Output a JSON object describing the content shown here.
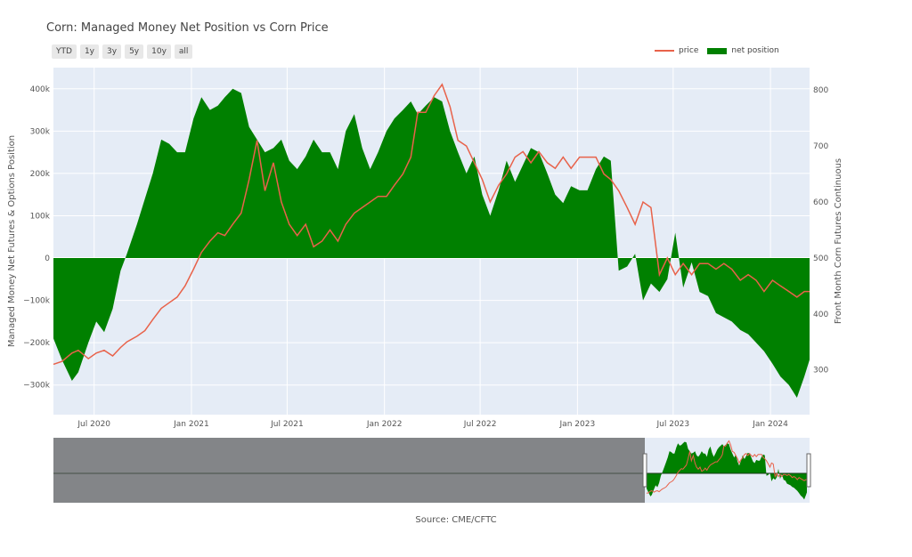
{
  "title": "Corn: Managed Money Net Position vs Corn Price",
  "range_buttons": [
    "YTD",
    "1y",
    "3y",
    "5y",
    "10y",
    "all"
  ],
  "legend": [
    {
      "label": "price",
      "color": "#e8624a",
      "kind": "line"
    },
    {
      "label": "net position",
      "color": "#008000",
      "kind": "fill"
    }
  ],
  "source": "Source: CME/CFTC",
  "chart_data": {
    "type": "area",
    "title": "Corn: Managed Money Net Position vs Corn Price",
    "ylabel": "Managed Money Net Futures & Options Position",
    "y2label": "Front Month Corn Futures Continuous",
    "ylim": [
      -370000,
      450000
    ],
    "y2lim": [
      220,
      840
    ],
    "x_ticks": [
      "Jul 2020",
      "Jan 2021",
      "Jul 2021",
      "Jan 2022",
      "Jul 2022",
      "Jan 2023",
      "Jul 2023",
      "Jan 2024"
    ],
    "y_ticks": [
      "400k",
      "300k",
      "200k",
      "100k",
      "0",
      "−100k",
      "−200k",
      "−300k"
    ],
    "y2_ticks": [
      "800",
      "700",
      "600",
      "500",
      "400",
      "300"
    ],
    "grid": true,
    "legend_position": "top-right",
    "range_slider": true,
    "series": [
      {
        "name": "net position",
        "axis": "left",
        "color": "#008000",
        "x": [
          "2020-04-15",
          "2020-05-01",
          "2020-05-20",
          "2020-06-01",
          "2020-06-20",
          "2020-07-05",
          "2020-07-20",
          "2020-08-05",
          "2020-08-20",
          "2020-09-01",
          "2020-09-20",
          "2020-10-05",
          "2020-10-20",
          "2020-11-05",
          "2020-11-20",
          "2020-12-05",
          "2020-12-20",
          "2021-01-05",
          "2021-01-20",
          "2021-02-05",
          "2021-02-20",
          "2021-03-05",
          "2021-03-20",
          "2021-04-05",
          "2021-04-20",
          "2021-05-05",
          "2021-05-20",
          "2021-06-05",
          "2021-06-20",
          "2021-07-05",
          "2021-07-20",
          "2021-08-05",
          "2021-08-20",
          "2021-09-05",
          "2021-09-20",
          "2021-10-05",
          "2021-10-20",
          "2021-11-05",
          "2021-11-20",
          "2021-12-05",
          "2021-12-20",
          "2022-01-05",
          "2022-01-20",
          "2022-02-05",
          "2022-02-20",
          "2022-03-05",
          "2022-03-20",
          "2022-04-05",
          "2022-04-20",
          "2022-05-05",
          "2022-05-20",
          "2022-06-05",
          "2022-06-20",
          "2022-07-05",
          "2022-07-20",
          "2022-08-05",
          "2022-08-20",
          "2022-09-05",
          "2022-09-20",
          "2022-10-05",
          "2022-10-20",
          "2022-11-05",
          "2022-11-20",
          "2022-12-05",
          "2022-12-20",
          "2023-01-05",
          "2023-01-20",
          "2023-02-05",
          "2023-02-20",
          "2023-03-05",
          "2023-03-20",
          "2023-04-05",
          "2023-04-20",
          "2023-05-05",
          "2023-05-20",
          "2023-06-05",
          "2023-06-20",
          "2023-07-05",
          "2023-07-20",
          "2023-08-05",
          "2023-08-20",
          "2023-09-05",
          "2023-09-20",
          "2023-10-05",
          "2023-10-20",
          "2023-11-05",
          "2023-11-20",
          "2023-12-05",
          "2023-12-20",
          "2024-01-05",
          "2024-01-20",
          "2024-02-05",
          "2024-02-20",
          "2024-03-05",
          "2024-03-15"
        ],
        "values": [
          -190000,
          -240000,
          -290000,
          -270000,
          -200000,
          -150000,
          -175000,
          -120000,
          -30000,
          10000,
          80000,
          140000,
          200000,
          280000,
          270000,
          250000,
          250000,
          330000,
          380000,
          350000,
          360000,
          380000,
          400000,
          390000,
          310000,
          280000,
          250000,
          260000,
          280000,
          230000,
          210000,
          240000,
          280000,
          250000,
          250000,
          210000,
          300000,
          340000,
          260000,
          210000,
          250000,
          300000,
          330000,
          350000,
          370000,
          340000,
          360000,
          380000,
          370000,
          300000,
          250000,
          200000,
          240000,
          150000,
          100000,
          160000,
          230000,
          180000,
          220000,
          260000,
          250000,
          200000,
          150000,
          130000,
          170000,
          160000,
          160000,
          210000,
          240000,
          230000,
          -30000,
          -20000,
          10000,
          -100000,
          -60000,
          -80000,
          -50000,
          60000,
          -70000,
          -10000,
          -80000,
          -90000,
          -130000,
          -140000,
          -150000,
          -170000,
          -180000,
          -200000,
          -220000,
          -250000,
          -280000,
          -300000,
          -330000,
          -280000,
          -240000
        ]
      },
      {
        "name": "price",
        "axis": "right",
        "color": "#e8624a",
        "x": [
          "2020-04-15",
          "2020-05-01",
          "2020-05-20",
          "2020-06-01",
          "2020-06-20",
          "2020-07-05",
          "2020-07-20",
          "2020-08-05",
          "2020-08-20",
          "2020-09-01",
          "2020-09-20",
          "2020-10-05",
          "2020-10-20",
          "2020-11-05",
          "2020-11-20",
          "2020-12-05",
          "2020-12-20",
          "2021-01-05",
          "2021-01-20",
          "2021-02-05",
          "2021-02-20",
          "2021-03-05",
          "2021-03-20",
          "2021-04-05",
          "2021-04-20",
          "2021-05-05",
          "2021-05-20",
          "2021-06-05",
          "2021-06-20",
          "2021-07-05",
          "2021-07-20",
          "2021-08-05",
          "2021-08-20",
          "2021-09-05",
          "2021-09-20",
          "2021-10-05",
          "2021-10-20",
          "2021-11-05",
          "2021-11-20",
          "2021-12-05",
          "2021-12-20",
          "2022-01-05",
          "2022-01-20",
          "2022-02-05",
          "2022-02-20",
          "2022-03-05",
          "2022-03-20",
          "2022-04-05",
          "2022-04-20",
          "2022-05-05",
          "2022-05-20",
          "2022-06-05",
          "2022-06-20",
          "2022-07-05",
          "2022-07-20",
          "2022-08-05",
          "2022-08-20",
          "2022-09-05",
          "2022-09-20",
          "2022-10-05",
          "2022-10-20",
          "2022-11-05",
          "2022-11-20",
          "2022-12-05",
          "2022-12-20",
          "2023-01-05",
          "2023-01-20",
          "2023-02-05",
          "2023-02-20",
          "2023-03-05",
          "2023-03-20",
          "2023-04-05",
          "2023-04-20",
          "2023-05-05",
          "2023-05-20",
          "2023-06-05",
          "2023-06-20",
          "2023-07-05",
          "2023-07-20",
          "2023-08-05",
          "2023-08-20",
          "2023-09-05",
          "2023-09-20",
          "2023-10-05",
          "2023-10-20",
          "2023-11-05",
          "2023-11-20",
          "2023-12-05",
          "2023-12-20",
          "2024-01-05",
          "2024-01-20",
          "2024-02-05",
          "2024-02-20",
          "2024-03-05",
          "2024-03-15"
        ],
        "values": [
          310,
          315,
          330,
          335,
          320,
          330,
          335,
          325,
          340,
          350,
          360,
          370,
          390,
          410,
          420,
          430,
          450,
          480,
          510,
          530,
          545,
          540,
          560,
          580,
          640,
          710,
          620,
          670,
          600,
          560,
          540,
          560,
          520,
          530,
          550,
          530,
          560,
          580,
          590,
          600,
          610,
          610,
          630,
          650,
          680,
          760,
          760,
          790,
          810,
          770,
          710,
          700,
          670,
          640,
          600,
          630,
          650,
          680,
          690,
          670,
          690,
          670,
          660,
          680,
          660,
          680,
          680,
          680,
          650,
          640,
          620,
          590,
          560,
          600,
          590,
          470,
          500,
          470,
          490,
          470,
          490,
          490,
          480,
          490,
          480,
          460,
          470,
          460,
          440,
          460,
          450,
          440,
          430,
          440,
          440
        ]
      }
    ]
  }
}
